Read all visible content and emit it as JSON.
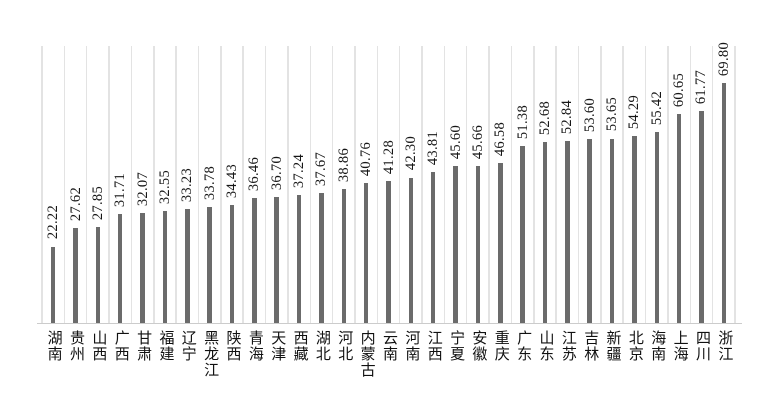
{
  "chart_data": {
    "type": "bar",
    "title": "",
    "xlabel": "",
    "ylabel": "",
    "categories": [
      "湖南",
      "贵州",
      "山西",
      "广西",
      "甘肃",
      "福建",
      "辽宁",
      "黑龙江",
      "陕西",
      "青海",
      "天津",
      "西藏",
      "湖北",
      "河北",
      "内蒙古",
      "云南",
      "河南",
      "江西",
      "宁夏",
      "安徽",
      "重庆",
      "广东",
      "山东",
      "江苏",
      "吉林",
      "新疆",
      "北京",
      "海南",
      "上海",
      "四川",
      "浙江"
    ],
    "values": [
      22.22,
      27.62,
      27.85,
      31.71,
      32.07,
      32.55,
      33.23,
      33.78,
      34.43,
      36.46,
      36.7,
      37.24,
      37.67,
      38.86,
      40.76,
      41.28,
      42.3,
      43.81,
      45.6,
      45.66,
      46.58,
      51.38,
      52.68,
      52.84,
      53.6,
      53.65,
      54.29,
      55.42,
      60.65,
      61.77,
      69.8
    ],
    "value_label_decimals": 2,
    "value_label_rotation": "90deg-counterclockwise",
    "category_label_style": "vertical-stacked-characters",
    "ylim": [
      0,
      69.8
    ],
    "y_axis_visible": false,
    "grid": "vertical-lines-at-category-boundaries",
    "legend": "none"
  },
  "colors": {
    "bar": "#6b6b6b",
    "gridline": "#e3e3e3",
    "axis_line": "#cccccc",
    "text": "#161616",
    "background": "#ffffff"
  }
}
